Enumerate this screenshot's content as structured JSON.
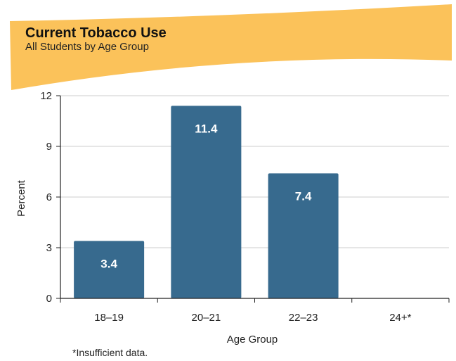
{
  "colors": {
    "banner": "#fbc25a",
    "bar": "#376a8e",
    "grid": "#cccccc",
    "axis": "#222222"
  },
  "chart_data": {
    "type": "bar",
    "title": "Current Tobacco Use",
    "subtitle": "All Students by Age Group",
    "categories": [
      "18–19",
      "20–21",
      "22–23",
      "24+*"
    ],
    "values": [
      3.4,
      11.4,
      7.4,
      null
    ],
    "value_labels": [
      "3.4",
      "11.4",
      "7.4",
      ""
    ],
    "xlabel": "Age Group",
    "ylabel": "Percent",
    "ylim": [
      0,
      12
    ],
    "yticks": [
      0,
      3,
      6,
      9,
      12
    ],
    "grid": true
  },
  "footnote": "*Insufficient data."
}
